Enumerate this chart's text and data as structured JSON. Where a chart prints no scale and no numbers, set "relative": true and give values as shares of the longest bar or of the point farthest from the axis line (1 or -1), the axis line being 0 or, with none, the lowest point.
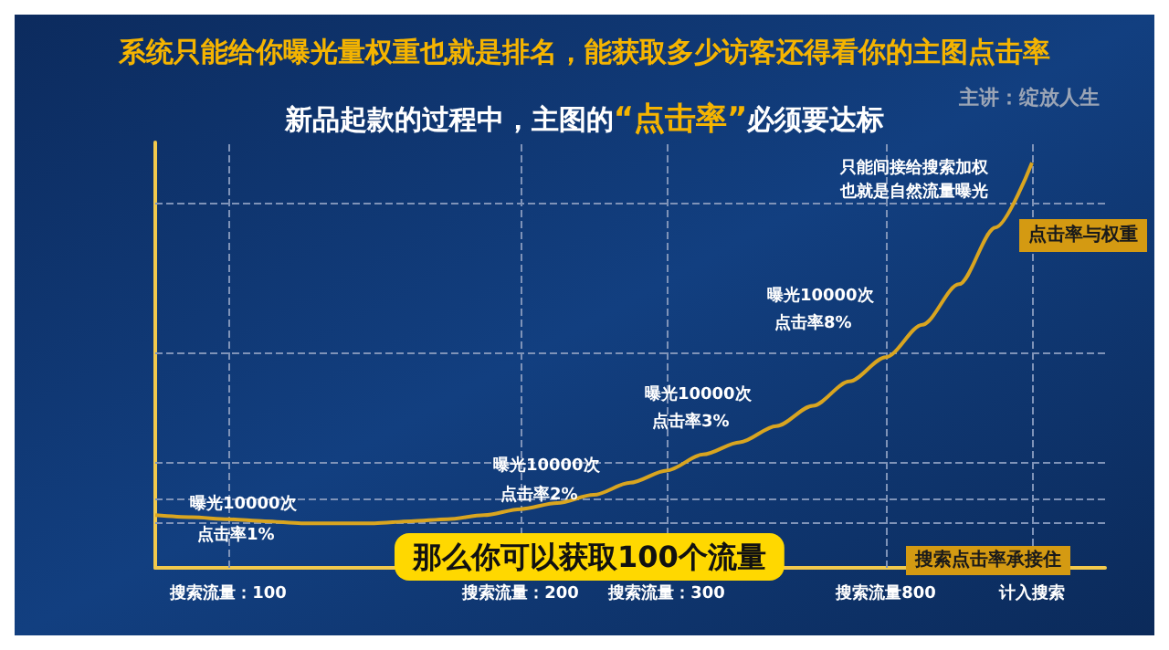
{
  "chart_data": {
    "type": "line",
    "title": "系统只能给你曝光量权重也就是排名，能获取多少访客还得看你的主图点击率",
    "subtitle": "新品起款的过程中，主图的“点击率”必须要达标",
    "ylabel": "点击率与权重",
    "xlabel": "搜索点击率承接住",
    "relative": true,
    "categories": [
      null,
      null,
      "搜索流量：100",
      null,
      null,
      null,
      null,
      null,
      null,
      null,
      "搜索流量：200",
      null,
      null,
      null,
      "搜索流量：300",
      null,
      null,
      null,
      null,
      null,
      "搜索流量800",
      null,
      null,
      null,
      "计入搜索",
      null,
      null
    ],
    "series": [
      {
        "color": "#d9a520",
        "values": [
          0.13,
          0.125,
          0.12,
          0.115,
          0.11,
          0.11,
          0.11,
          0.115,
          0.12,
          0.13,
          0.145,
          0.16,
          0.18,
          0.21,
          0.24,
          0.28,
          0.31,
          0.35,
          0.4,
          0.46,
          0.52,
          0.6,
          0.7,
          0.84,
          1.0,
          null,
          null
        ]
      }
    ],
    "ref_lines": [
      {
        "axis": "y",
        "value": 0.11,
        "color": "#7f93b8",
        "line_style": "dashed"
      },
      {
        "axis": "y",
        "value": 0.17,
        "color": "#7f93b8",
        "line_style": "dashed"
      },
      {
        "axis": "y",
        "value": 0.26,
        "color": "#7f93b8",
        "line_style": "dashed"
      },
      {
        "axis": "y",
        "value": 0.53,
        "color": "#7f93b8",
        "line_style": "dashed"
      },
      {
        "axis": "y",
        "value": 0.9,
        "color": "#7f93b8",
        "line_style": "dashed"
      },
      {
        "axis": "x",
        "value": "搜索流量：100",
        "color": "#7f93b8",
        "line_style": "dashed"
      },
      {
        "axis": "x",
        "value": "搜索流量：200",
        "color": "#7f93b8",
        "line_style": "dashed"
      },
      {
        "axis": "x",
        "value": "搜索流量：300",
        "color": "#7f93b8",
        "line_style": "dashed"
      },
      {
        "axis": "x",
        "value": "搜索流量800",
        "color": "#7f93b8",
        "line_style": "dashed"
      },
      {
        "axis": "x",
        "value": "计入搜索",
        "color": "#7f93b8",
        "line_style": "dashed"
      }
    ],
    "annotations": [
      "主讲：绽放人生",
      "那么你可以获取100个流量",
      "曝光10000次",
      "点击率1%",
      "曝光10000次",
      "点击率2%",
      "曝光10000次",
      "点击率3%",
      "曝光10000次",
      "点击率8%",
      "只能间接给搜索加权",
      "也就是自然流量曝光"
    ],
    "grid": false,
    "marker": "none",
    "line_style": "solid"
  }
}
